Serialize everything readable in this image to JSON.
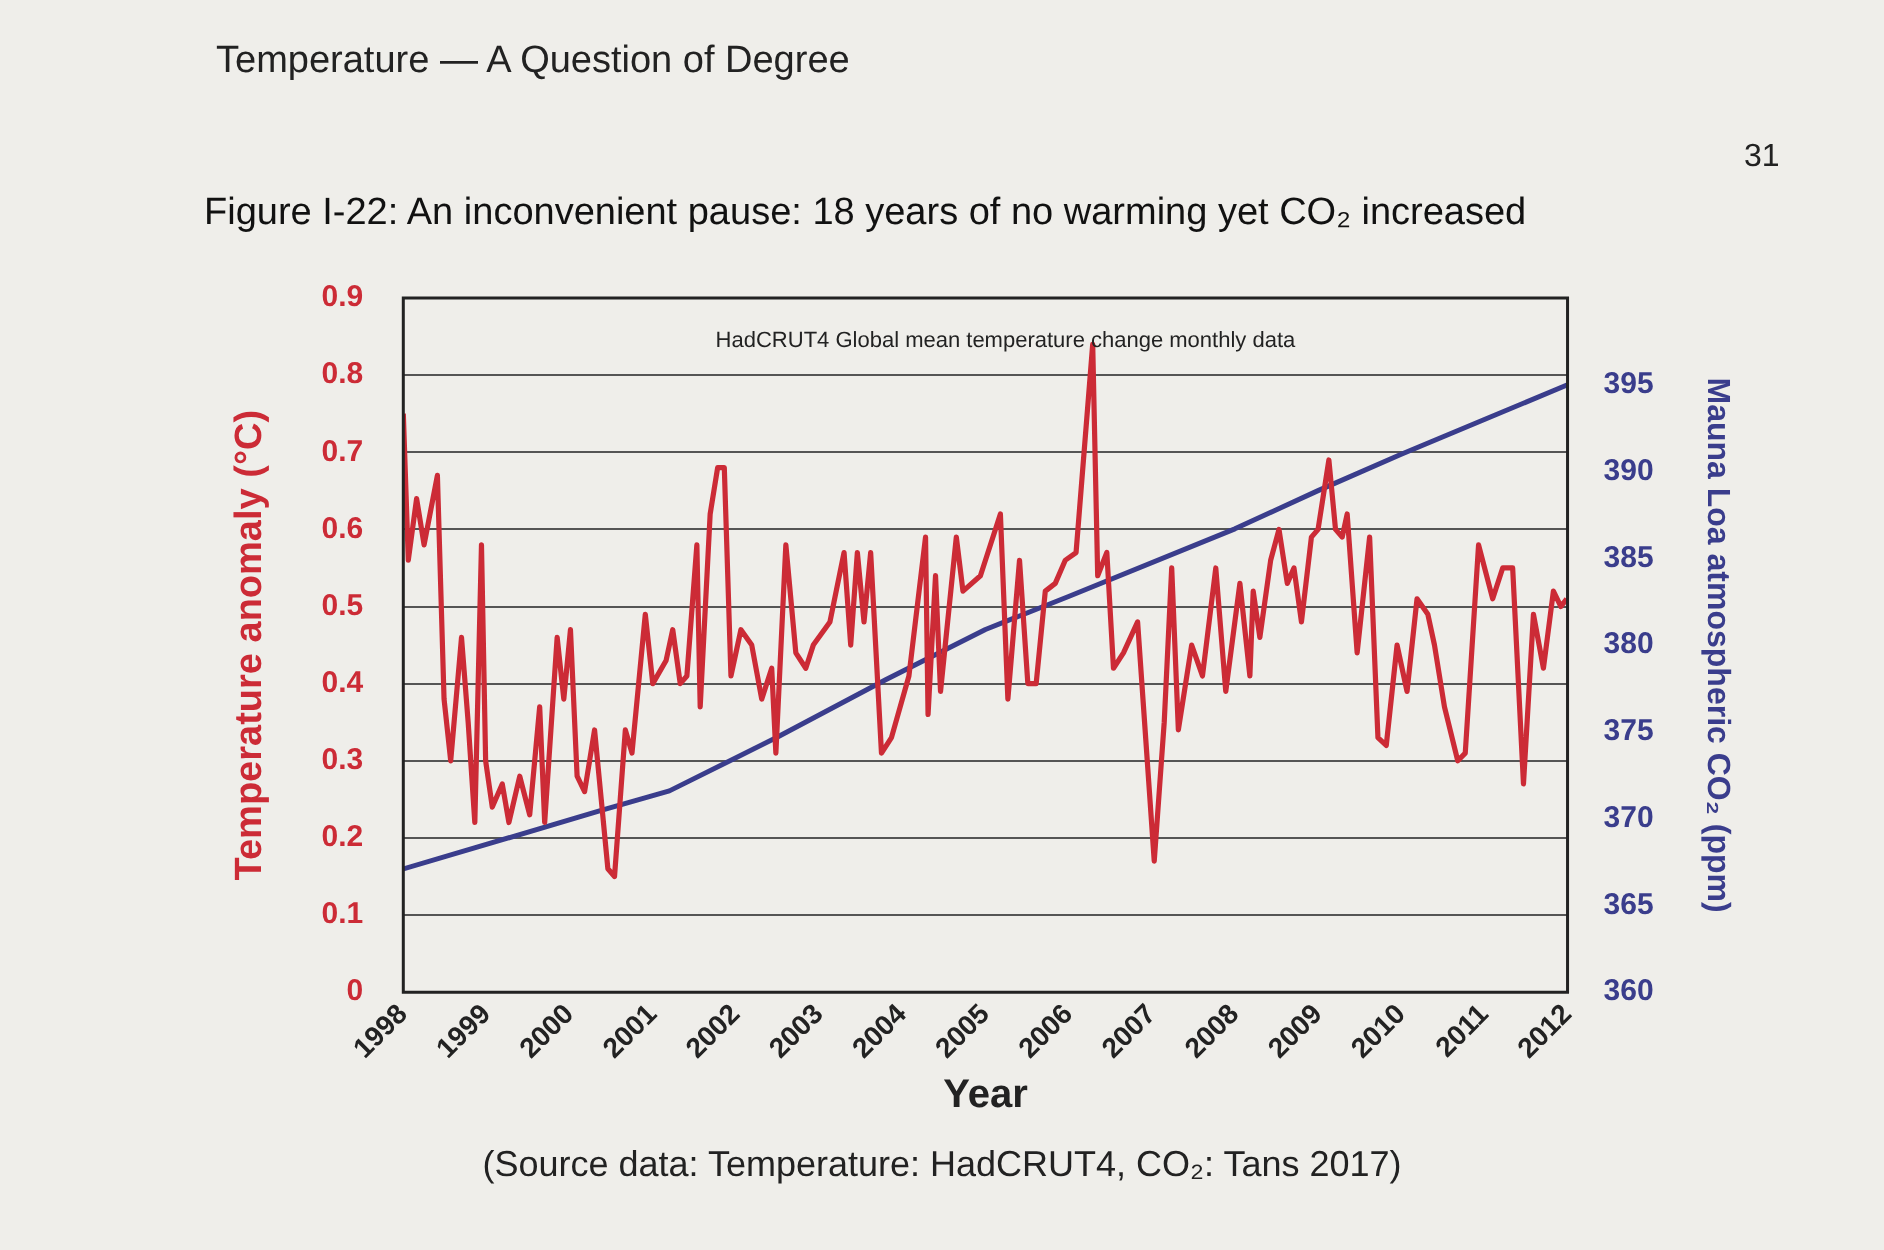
{
  "chart_data": {
    "type": "line",
    "title": "Figure I-22: An inconvenient pause: 18 years of no warming yet CO₂ increased",
    "subtitle": "HadCRUT4 Global mean temperature change monthly data",
    "xlabel": "Year",
    "ylabel": "Temperature anomaly (°C)",
    "y2label": "Mauna Loa atmospheric CO₂ (ppm)",
    "annotations": [
      "Temperature — A Question of Degree",
      "31",
      "(Source data: Temperature: HadCRUT4, CO₂: Tans 2017)"
    ],
    "xlim": [
      1998,
      2012
    ],
    "xticks": [
      1998,
      1999,
      2000,
      2001,
      2002,
      2003,
      2004,
      2005,
      2006,
      2007,
      2008,
      2009,
      2010,
      2011,
      2012
    ],
    "ylim": [
      0,
      0.9
    ],
    "yticks": [
      0,
      0.1,
      0.2,
      0.3,
      0.4,
      0.5,
      0.6,
      0.7,
      0.8,
      0.9
    ],
    "y2lim": [
      360,
      400
    ],
    "y2ticks": [
      360,
      365,
      370,
      375,
      380,
      385,
      390,
      395
    ],
    "grid": "y",
    "legend": false,
    "marker": "none",
    "series": [
      {
        "color": "#cc2b36",
        "axis": "y",
        "x": [
          1998.0,
          1998.06,
          1998.16,
          1998.25,
          1998.41,
          1998.49,
          1998.57,
          1998.7,
          1998.78,
          1998.86,
          1998.94,
          1998.99,
          1999.07,
          1999.19,
          1999.27,
          1999.4,
          1999.52,
          1999.64,
          1999.7,
          1999.85,
          1999.93,
          2000.01,
          2000.09,
          2000.18,
          2000.3,
          2000.38,
          2000.46,
          2000.54,
          2000.67,
          2000.75,
          2000.91,
          2001.0,
          2001.16,
          2001.24,
          2001.33,
          2001.41,
          2001.53,
          2001.57,
          2001.69,
          2001.78,
          2001.86,
          2001.94,
          2002.06,
          2002.19,
          2002.31,
          2002.43,
          2002.48,
          2002.6,
          2002.72,
          2002.84,
          2002.93,
          2003.13,
          2003.3,
          2003.38,
          2003.46,
          2003.54,
          2003.62,
          2003.75,
          2003.87,
          2004.08,
          2004.28,
          2004.31,
          2004.4,
          2004.46,
          2004.65,
          2004.73,
          2004.94,
          2005.18,
          2005.27,
          2005.41,
          2005.51,
          2005.61,
          2005.72,
          2005.84,
          2005.96,
          2006.09,
          2006.29,
          2006.35,
          2006.46,
          2006.54,
          2006.66,
          2006.83,
          2007.03,
          2007.15,
          2007.24,
          2007.32,
          2007.48,
          2007.61,
          2007.77,
          2007.89,
          2008.06,
          2008.18,
          2008.22,
          2008.3,
          2008.43,
          2008.53,
          2008.63,
          2008.71,
          2008.8,
          2008.92,
          2009.0,
          2009.13,
          2009.21,
          2009.29,
          2009.35,
          2009.47,
          2009.62,
          2009.72,
          2009.82,
          2009.95,
          2010.07,
          2010.19,
          2010.32,
          2010.4,
          2010.52,
          2010.68,
          2010.77,
          2010.93,
          2011.1,
          2011.22,
          2011.34,
          2011.47,
          2011.59,
          2011.71,
          2011.83,
          2011.92,
          2011.99
        ],
        "values": [
          0.75,
          0.56,
          0.64,
          0.58,
          0.67,
          0.38,
          0.3,
          0.46,
          0.35,
          0.22,
          0.58,
          0.3,
          0.24,
          0.27,
          0.22,
          0.28,
          0.23,
          0.37,
          0.22,
          0.46,
          0.38,
          0.47,
          0.28,
          0.26,
          0.34,
          0.25,
          0.16,
          0.15,
          0.34,
          0.31,
          0.49,
          0.4,
          0.43,
          0.47,
          0.4,
          0.41,
          0.58,
          0.37,
          0.62,
          0.68,
          0.68,
          0.41,
          0.47,
          0.45,
          0.38,
          0.42,
          0.31,
          0.58,
          0.44,
          0.42,
          0.45,
          0.48,
          0.57,
          0.45,
          0.57,
          0.48,
          0.57,
          0.31,
          0.33,
          0.41,
          0.59,
          0.36,
          0.54,
          0.39,
          0.59,
          0.52,
          0.54,
          0.62,
          0.38,
          0.56,
          0.4,
          0.4,
          0.52,
          0.53,
          0.56,
          0.57,
          0.84,
          0.54,
          0.57,
          0.42,
          0.44,
          0.48,
          0.17,
          0.35,
          0.55,
          0.34,
          0.45,
          0.41,
          0.55,
          0.39,
          0.53,
          0.41,
          0.52,
          0.46,
          0.56,
          0.6,
          0.53,
          0.55,
          0.48,
          0.59,
          0.6,
          0.69,
          0.6,
          0.59,
          0.62,
          0.44,
          0.59,
          0.33,
          0.32,
          0.45,
          0.39,
          0.51,
          0.49,
          0.45,
          0.37,
          0.3,
          0.31,
          0.58,
          0.51,
          0.55,
          0.55,
          0.27,
          0.49,
          0.42,
          0.52,
          0.5,
          0.51
        ]
      },
      {
        "color": "#3a3d8c",
        "axis": "y2",
        "x": [
          1998.0,
          2000.4,
          2001.2,
          2002.5,
          2003.8,
          2005.0,
          2006.0,
          2008.0,
          2009.0,
          2010.0,
          2011.0,
          2012.0
        ],
        "values": [
          367.1,
          370.5,
          371.6,
          374.7,
          378,
          380.9,
          382.8,
          386.7,
          388.9,
          391,
          393,
          395
        ]
      }
    ]
  }
}
